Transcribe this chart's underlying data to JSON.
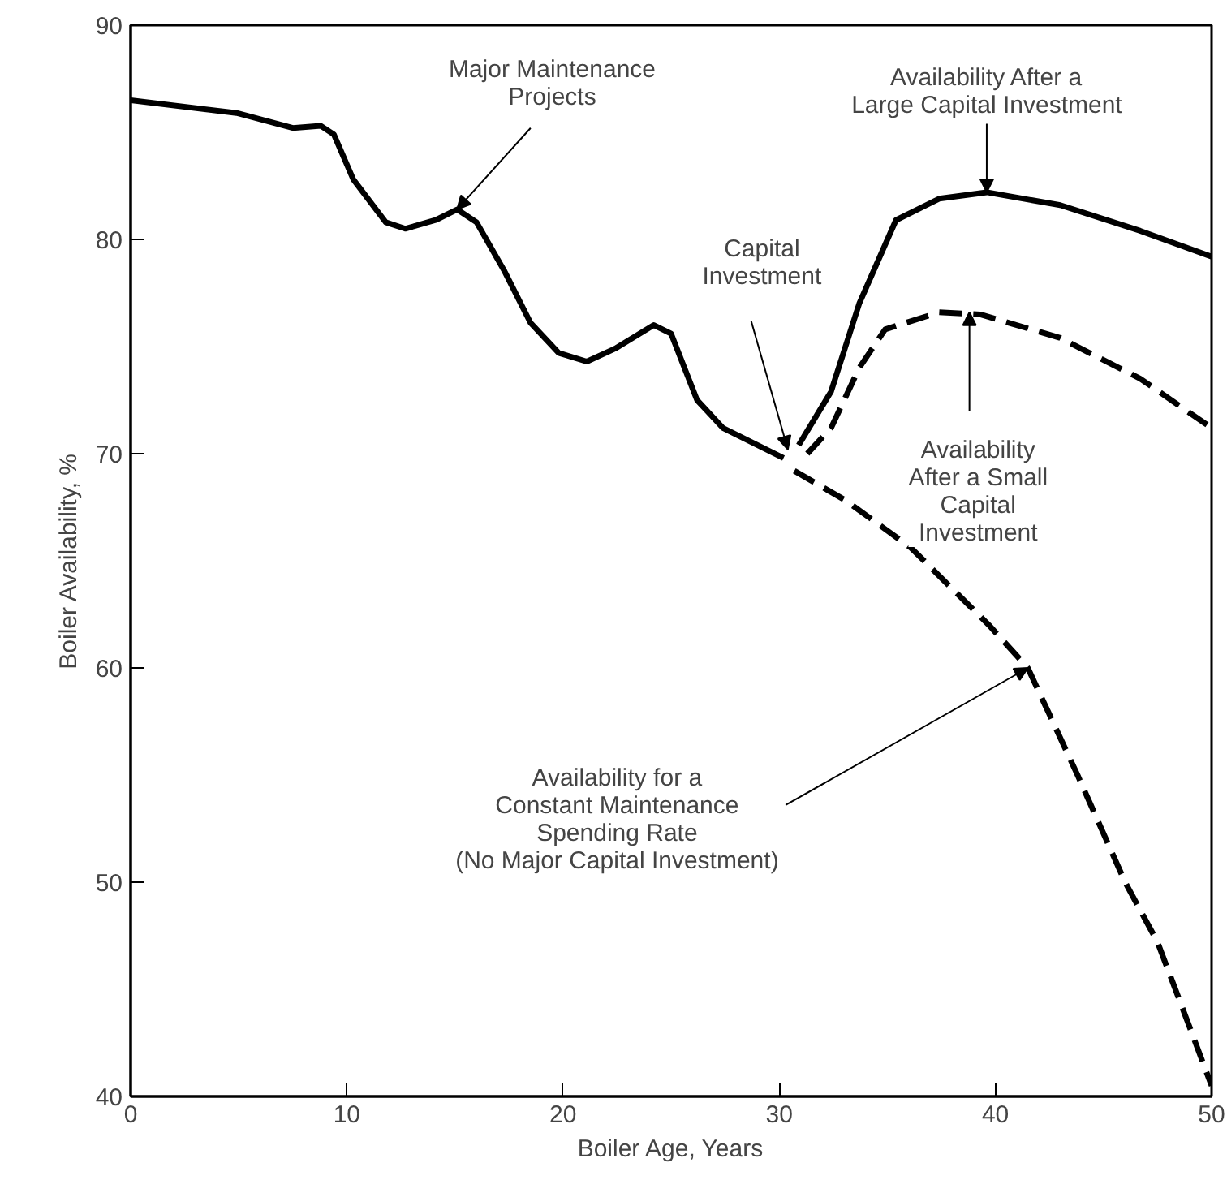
{
  "chart_data": {
    "type": "line",
    "xlabel": "Boiler Age, Years",
    "ylabel": "Boiler Availability, %",
    "xlim": [
      0,
      50
    ],
    "ylim": [
      40,
      90
    ],
    "xticks": [
      0,
      10,
      20,
      30,
      40,
      50
    ],
    "yticks": [
      40,
      50,
      60,
      70,
      80,
      90
    ],
    "grid": false,
    "series": [
      {
        "color": "#000000",
        "line_style": "solid",
        "x": [
          0,
          4.9,
          7.5,
          8.8,
          9.4,
          10.3,
          11.8,
          12.7,
          14.1,
          15.1,
          16.0,
          17.3,
          18.5,
          19.8,
          21.1,
          22.4,
          24.2,
          25.0,
          26.2,
          27.4,
          30.2
        ],
        "values": [
          86.5,
          85.9,
          85.2,
          85.3,
          84.9,
          82.8,
          80.8,
          80.5,
          80.9,
          81.4,
          80.8,
          78.5,
          76.1,
          74.7,
          74.3,
          74.9,
          76.0,
          75.6,
          72.5,
          71.2,
          69.8
        ]
      },
      {
        "color": "#000000",
        "line_style": "solid",
        "x": [
          30.9,
          32.4,
          33.7,
          35.4,
          37.4,
          39.6,
          43.0,
          46.7,
          50
        ],
        "values": [
          70.4,
          72.9,
          77.0,
          80.9,
          81.9,
          82.2,
          81.6,
          80.4,
          79.2
        ]
      },
      {
        "color": "#000000",
        "line_style": "dashed",
        "x": [
          31.3,
          32.4,
          33.7,
          34.9,
          37.4,
          39.3,
          43.0,
          46.7,
          50
        ],
        "values": [
          70.0,
          71.2,
          74.0,
          75.8,
          76.6,
          76.5,
          75.4,
          73.5,
          71.2
        ]
      },
      {
        "color": "#000000",
        "line_style": "dashed",
        "x": [
          30.7,
          33.1,
          36.1,
          39.7,
          41.5,
          43.8,
          46.0,
          47.5,
          48.7,
          50
        ],
        "values": [
          69.2,
          67.8,
          65.6,
          62.0,
          60.0,
          55.0,
          50.0,
          47.2,
          44.0,
          40.5
        ]
      }
    ],
    "annotations": [
      {
        "text": "Major Maintenance\nProjects",
        "x": 15.1,
        "y": 81.4
      },
      {
        "text": "Capital\nInvestment",
        "x": 30.4,
        "y": 70.2
      },
      {
        "text": "Availability After a\nLarge Capital Investment",
        "x": 39.6,
        "y": 82.2
      },
      {
        "text": "Availability\nAfter a Small\nCapital\nInvestment",
        "x": 38.8,
        "y": 76.6
      },
      {
        "text": "Availability for a\nConstant Maintenance\nSpending Rate\n(No Major Capital Investment)",
        "x": 41.5,
        "y": 60.0
      }
    ]
  }
}
